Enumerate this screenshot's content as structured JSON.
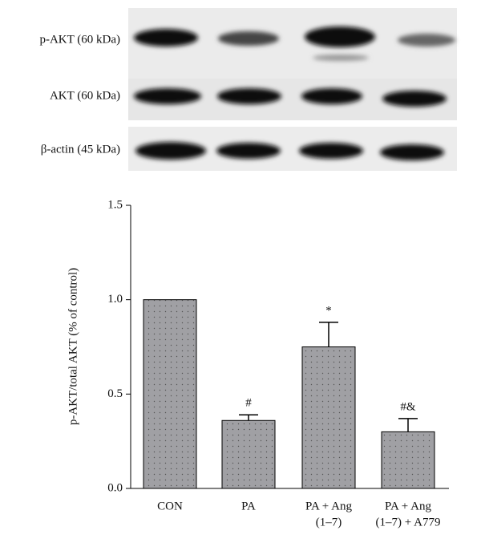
{
  "blot": {
    "labels": [
      "p-AKT (60 kDa)",
      "AKT (60 kDa)",
      "β-actin (45 kDa)"
    ]
  },
  "chart_data": {
    "type": "bar",
    "ylabel": "p-AKT/total AKT (% of control)",
    "categories": [
      [
        "CON"
      ],
      [
        "PA"
      ],
      [
        "PA + Ang",
        "(1–7)"
      ],
      [
        "PA + Ang",
        "(1–7) + A779"
      ]
    ],
    "values": [
      1.0,
      0.36,
      0.75,
      0.3
    ],
    "errors": [
      0,
      0.03,
      0.13,
      0.07
    ],
    "annotations": [
      null,
      "#",
      "*",
      "#&"
    ],
    "color": "#a0a0a4",
    "ylim": [
      0,
      1.5
    ],
    "yticks": [
      {
        "value": 0,
        "label": "0.0"
      },
      0.5,
      {
        "value": 1,
        "label": "1.0"
      },
      1.5
    ]
  }
}
